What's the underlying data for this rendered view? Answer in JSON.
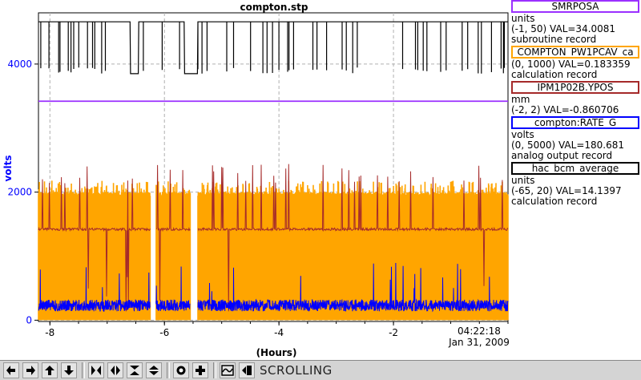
{
  "chart_data": {
    "type": "line",
    "title": "compton.stp",
    "xlabel": "(Hours)",
    "ylabel": "volts",
    "xlim": [
      -8.2,
      0
    ],
    "ylim": [
      -20,
      4800
    ],
    "x_ticks": [
      "-8",
      "-6",
      "-4",
      "-2"
    ],
    "y_ticks": [
      "0",
      "2000",
      "4000"
    ],
    "time_label": "04:22:18",
    "date_label": "Jan 31, 2009",
    "grid": true,
    "series": [
      {
        "name": "SMRPOSA",
        "color": "#9b30ff",
        "level": 3420
      },
      {
        "name": "COMPTON_PW1PCAV_ca",
        "color": "#ffa500",
        "band": [
          0,
          2000
        ],
        "spike": 2180
      },
      {
        "name": "IPM1P02B.YPOS",
        "color": "#a52a2a",
        "level": 1420,
        "spike": 2500
      },
      {
        "name": "compton:RATE_G",
        "color": "#0000ff",
        "level": 230
      },
      {
        "name": "hac_bcm_average",
        "color": "#000000",
        "level": 4660,
        "low": 3850
      }
    ],
    "gaps": [
      [
        -6.25,
        -6.15
      ],
      [
        -5.55,
        -5.42
      ]
    ]
  },
  "legend": [
    {
      "name": "SMRPOSA",
      "color": "#9b30ff",
      "lines": [
        "units",
        "(-1, 50) VAL=34.0081",
        "subroutine record"
      ]
    },
    {
      "name": "COMPTON_PW1PCAV_ca",
      "color": "#ffa500",
      "lines": [
        "(0, 1000) VAL=0.183359",
        "calculation record"
      ]
    },
    {
      "name": "IPM1P02B.YPOS",
      "color": "#a52a2a",
      "lines": [
        "mm",
        "(-2, 2) VAL=-0.860706"
      ]
    },
    {
      "name": "compton:RATE_G",
      "color": "#0000ff",
      "lines": [
        "volts",
        "(0, 5000) VAL=180.681",
        "analog output record"
      ]
    },
    {
      "name": "hac_bcm_average",
      "color": "#000000",
      "lines": [
        "units",
        "(-65, 20) VAL=14.1397",
        "calculation record"
      ]
    }
  ],
  "toolbar": {
    "status": "SCROLLING",
    "buttons": [
      "arrow-left-icon",
      "arrow-right-icon",
      "arrow-up-icon",
      "arrow-down-icon",
      "expand-horizontal-icon",
      "compress-horizontal-icon",
      "expand-vertical-icon",
      "compress-vertical-icon",
      "target-icon",
      "plus-icon",
      "autoscale-icon",
      "screenshot-icon"
    ]
  }
}
